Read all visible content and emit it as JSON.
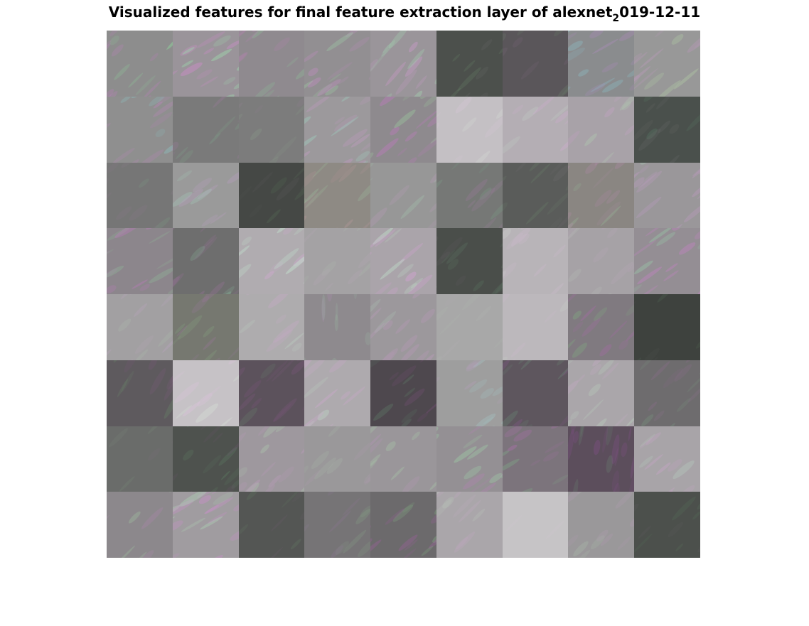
{
  "title": {
    "main": "Visualized features for final feature extraction layer of alexnet",
    "subscript": "2",
    "suffix": "019-12-11"
  },
  "montage": {
    "rows": 8,
    "cols": 9,
    "tiles": [
      {
        "base": "#8d8d8d",
        "tint": "#c47fc4",
        "accent": "#8fcf9a",
        "angle": 45,
        "texture": 0.6
      },
      {
        "base": "#9a949a",
        "tint": "#d58bd0",
        "accent": "#9fe0b0",
        "angle": 30,
        "texture": 0.8
      },
      {
        "base": "#8f8a8f",
        "tint": "#b982b5",
        "accent": "#90c99a",
        "angle": 40,
        "texture": 0.5
      },
      {
        "base": "#928f92",
        "tint": "#c58dc5",
        "accent": "#a0d6a8",
        "angle": 35,
        "texture": 0.7
      },
      {
        "base": "#9a959a",
        "tint": "#d49ad3",
        "accent": "#a5dcb5",
        "angle": 50,
        "texture": 0.6
      },
      {
        "base": "#4c504c",
        "tint": "#6b6b6b",
        "accent": "#6d8a6d",
        "angle": 45,
        "texture": 0.3
      },
      {
        "base": "#5a565a",
        "tint": "#7a6a7a",
        "accent": "#708a70",
        "angle": 45,
        "texture": 0.3
      },
      {
        "base": "#8a8c8e",
        "tint": "#b08cc0",
        "accent": "#8cc0c8",
        "angle": 30,
        "texture": 0.6
      },
      {
        "base": "#989898",
        "tint": "#c69ac6",
        "accent": "#b8d6a8",
        "angle": 40,
        "texture": 0.5
      },
      {
        "base": "#8f8f8f",
        "tint": "#c085c0",
        "accent": "#8cc8c8",
        "angle": 35,
        "texture": 0.7
      },
      {
        "base": "#7a7a7a",
        "tint": "#a07aa0",
        "accent": "#80b090",
        "angle": 45,
        "texture": 0.5
      },
      {
        "base": "#7c7c7c",
        "tint": "#8e7e8e",
        "accent": "#8a9e8a",
        "angle": 45,
        "texture": 0.3
      },
      {
        "base": "#9c999c",
        "tint": "#c89ac8",
        "accent": "#9fe0c8",
        "angle": 35,
        "texture": 0.7
      },
      {
        "base": "#8e8a8e",
        "tint": "#c07ac0",
        "accent": "#9ed0a0",
        "angle": 40,
        "texture": 0.7
      },
      {
        "base": "#c4c0c4",
        "tint": "#ddc6dd",
        "accent": "#d6e0d6",
        "angle": 45,
        "texture": 0.3
      },
      {
        "base": "#b4aeb4",
        "tint": "#d6acd6",
        "accent": "#c8e0d0",
        "angle": 40,
        "texture": 0.4
      },
      {
        "base": "#a8a2a8",
        "tint": "#cfa2cf",
        "accent": "#b4d4b4",
        "angle": 45,
        "texture": 0.4
      },
      {
        "base": "#4a504c",
        "tint": "#6a6a6a",
        "accent": "#5f8a6f",
        "angle": 45,
        "texture": 0.3
      },
      {
        "base": "#767676",
        "tint": "#8c7a8c",
        "accent": "#7c9a84",
        "angle": 40,
        "texture": 0.3
      },
      {
        "base": "#9a9a9a",
        "tint": "#c09ec8",
        "accent": "#a8d4c0",
        "angle": 35,
        "texture": 0.5
      },
      {
        "base": "#454845",
        "tint": "#5a5a5a",
        "accent": "#5c7a5c",
        "angle": 45,
        "texture": 0.3
      },
      {
        "base": "#8e8a84",
        "tint": "#b8989c",
        "accent": "#9ab89a",
        "angle": 45,
        "texture": 0.6
      },
      {
        "base": "#979797",
        "tint": "#bb9bbb",
        "accent": "#a6c8b0",
        "angle": 45,
        "texture": 0.4
      },
      {
        "base": "#767876",
        "tint": "#9c7c9c",
        "accent": "#7ca088",
        "angle": 45,
        "texture": 0.5
      },
      {
        "base": "#5a5c5a",
        "tint": "#6e6a6e",
        "accent": "#6e846e",
        "angle": 45,
        "texture": 0.3
      },
      {
        "base": "#8a8682",
        "tint": "#b08aa8",
        "accent": "#98b898",
        "angle": 45,
        "texture": 0.6
      },
      {
        "base": "#9a979a",
        "tint": "#c29ac6",
        "accent": "#a8d0b4",
        "angle": 40,
        "texture": 0.6
      },
      {
        "base": "#8c868c",
        "tint": "#c07ac0",
        "accent": "#90b898",
        "angle": 30,
        "texture": 0.7
      },
      {
        "base": "#6e6e6e",
        "tint": "#9a729a",
        "accent": "#88b89a",
        "angle": 45,
        "texture": 0.6
      },
      {
        "base": "#b0acb0",
        "tint": "#d6a8d6",
        "accent": "#c8f0d6",
        "angle": 40,
        "texture": 0.7
      },
      {
        "base": "#a4a2a4",
        "tint": "#b8aab8",
        "accent": "#b0c0b0",
        "angle": 45,
        "texture": 0.2
      },
      {
        "base": "#aaa4aa",
        "tint": "#d8a2d8",
        "accent": "#c6ecd0",
        "angle": 40,
        "texture": 0.7
      },
      {
        "base": "#4a4e4a",
        "tint": "#625e62",
        "accent": "#5e7a66",
        "angle": 45,
        "texture": 0.4
      },
      {
        "base": "#b8b4b8",
        "tint": "#d6bcd6",
        "accent": "#d0d8d0",
        "angle": 45,
        "texture": 0.3
      },
      {
        "base": "#a6a2a6",
        "tint": "#c0a8c0",
        "accent": "#bcc8bc",
        "angle": 45,
        "texture": 0.2
      },
      {
        "base": "#948e94",
        "tint": "#c882c8",
        "accent": "#98c8a8",
        "angle": 35,
        "texture": 0.8
      },
      {
        "base": "#a2a0a2",
        "tint": "#c0a6c4",
        "accent": "#b4ccb4",
        "angle": 45,
        "texture": 0.4
      },
      {
        "base": "#767870",
        "tint": "#9c789c",
        "accent": "#88a880",
        "angle": 45,
        "texture": 0.5
      },
      {
        "base": "#aeacae",
        "tint": "#ccaacc",
        "accent": "#c0d8c8",
        "angle": 40,
        "texture": 0.5
      },
      {
        "base": "#8e8a8e",
        "tint": "#b08ab4",
        "accent": "#9cbca4",
        "angle": 90,
        "texture": 0.5
      },
      {
        "base": "#9c989c",
        "tint": "#c49ac4",
        "accent": "#b0d0b8",
        "angle": 45,
        "texture": 0.5
      },
      {
        "base": "#a8a8a8",
        "tint": "#b4acb4",
        "accent": "#b4bcb4",
        "angle": 45,
        "texture": 0.1
      },
      {
        "base": "#bcb8bc",
        "tint": "#d0bad0",
        "accent": "#ccd4cc",
        "angle": 45,
        "texture": 0.2
      },
      {
        "base": "#807a80",
        "tint": "#a86aa8",
        "accent": "#80b080",
        "angle": 45,
        "texture": 0.7
      },
      {
        "base": "#3e423e",
        "tint": "#525052",
        "accent": "#56705a",
        "angle": 45,
        "texture": 0.2
      },
      {
        "base": "#5e5a5e",
        "tint": "#7c5a7c",
        "accent": "#6a8a6a",
        "angle": 60,
        "texture": 0.6
      },
      {
        "base": "#c6c2c6",
        "tint": "#e0c2e0",
        "accent": "#dcecdc",
        "angle": 40,
        "texture": 0.5
      },
      {
        "base": "#5c525c",
        "tint": "#7c567c",
        "accent": "#6a866e",
        "angle": 45,
        "texture": 0.5
      },
      {
        "base": "#aeaaae",
        "tint": "#d0a8d0",
        "accent": "#c4e4cc",
        "angle": 40,
        "texture": 0.6
      },
      {
        "base": "#4e484e",
        "tint": "#7a4e7a",
        "accent": "#60806a",
        "angle": 40,
        "texture": 0.6
      },
      {
        "base": "#9e9e9e",
        "tint": "#b8a0c0",
        "accent": "#a4c8c8",
        "angle": 35,
        "texture": 0.5
      },
      {
        "base": "#5e565e",
        "tint": "#84588a",
        "accent": "#6a8a76",
        "angle": 45,
        "texture": 0.6
      },
      {
        "base": "#aaa6aa",
        "tint": "#ccaacc",
        "accent": "#c0dcc4",
        "angle": 45,
        "texture": 0.4
      },
      {
        "base": "#6e6c6e",
        "tint": "#8a6e8a",
        "accent": "#7a9a82",
        "angle": 45,
        "texture": 0.5
      },
      {
        "base": "#6a6c6a",
        "tint": "#7a6e7a",
        "accent": "#7a8e7a",
        "angle": 45,
        "texture": 0.2
      },
      {
        "base": "#4e524e",
        "tint": "#6e546e",
        "accent": "#5e8264",
        "angle": 0,
        "texture": 0.6
      },
      {
        "base": "#9e989e",
        "tint": "#c49cc4",
        "accent": "#b0d0b0",
        "angle": 45,
        "texture": 0.5
      },
      {
        "base": "#9a989a",
        "tint": "#b09cb0",
        "accent": "#aabcaa",
        "angle": 45,
        "texture": 0.3
      },
      {
        "base": "#9a969a",
        "tint": "#c094c4",
        "accent": "#acd0ac",
        "angle": 45,
        "texture": 0.6
      },
      {
        "base": "#949094",
        "tint": "#b482b4",
        "accent": "#a0d0a8",
        "angle": 35,
        "texture": 0.7
      },
      {
        "base": "#7c747c",
        "tint": "#a670a6",
        "accent": "#80aa88",
        "angle": 30,
        "texture": 0.7
      },
      {
        "base": "#5c4e5c",
        "tint": "#84508a",
        "accent": "#6a8470",
        "angle": 80,
        "texture": 0.6
      },
      {
        "base": "#a8a4a8",
        "tint": "#cca4cc",
        "accent": "#bcd8c4",
        "angle": 40,
        "texture": 0.5
      },
      {
        "base": "#8c888c",
        "tint": "#b088b0",
        "accent": "#a0c0a0",
        "angle": 45,
        "texture": 0.6
      },
      {
        "base": "#a09ca0",
        "tint": "#d08ed0",
        "accent": "#b0e0b8",
        "angle": 30,
        "texture": 0.7
      },
      {
        "base": "#545654",
        "tint": "#6a5c6a",
        "accent": "#647e64",
        "angle": 45,
        "texture": 0.4
      },
      {
        "base": "#767476",
        "tint": "#92789a",
        "accent": "#86a086",
        "angle": 45,
        "texture": 0.4
      },
      {
        "base": "#6c6a6c",
        "tint": "#9a609a",
        "accent": "#80aa80",
        "angle": 40,
        "texture": 0.7
      },
      {
        "base": "#aaa6aa",
        "tint": "#c6aac6",
        "accent": "#bed0be",
        "angle": 45,
        "texture": 0.3
      },
      {
        "base": "#c6c4c6",
        "tint": "#d4c6d4",
        "accent": "#d6dcd6",
        "angle": 45,
        "texture": 0.1
      },
      {
        "base": "#9a989a",
        "tint": "#b49cb4",
        "accent": "#acc4ac",
        "angle": 45,
        "texture": 0.4
      },
      {
        "base": "#4c504c",
        "tint": "#5e5a5e",
        "accent": "#5a765e",
        "angle": 45,
        "texture": 0.3
      }
    ]
  }
}
